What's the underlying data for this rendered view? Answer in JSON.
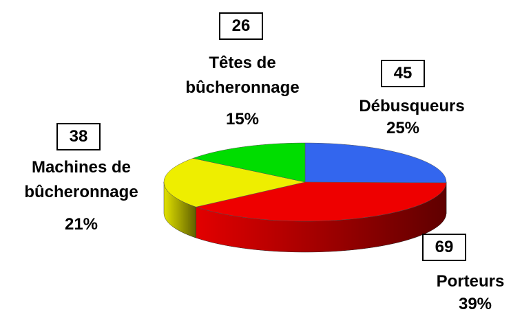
{
  "chart_data": {
    "type": "pie3d",
    "categories": [
      "Débusqueurs",
      "Porteurs",
      "Machines de bûcheronnage",
      "Têtes de bûcheronnage"
    ],
    "values": [
      45,
      69,
      38,
      26
    ],
    "percent_labels": [
      "25%",
      "39%",
      "21%",
      "15%"
    ],
    "colors": [
      "#3366ee",
      "#ee0000",
      "#eeee00",
      "#00dd00"
    ]
  }
}
